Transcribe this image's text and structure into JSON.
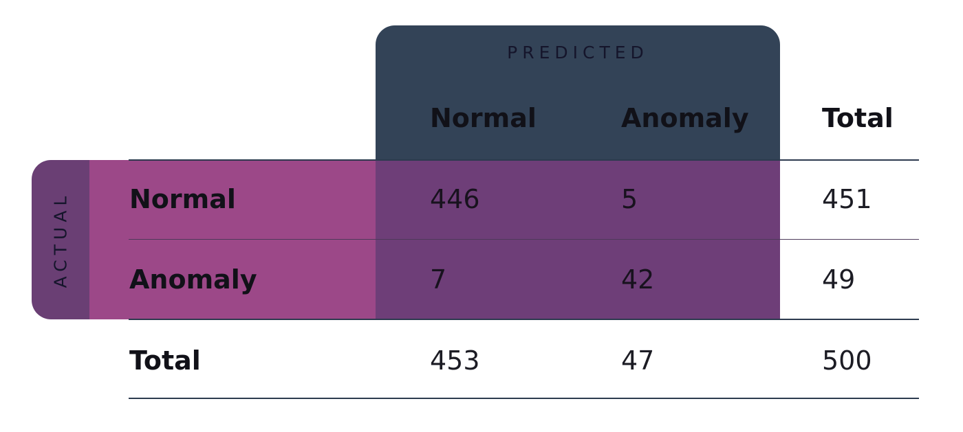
{
  "colors": {
    "predicted_header": "#334357",
    "actual_strip": "#6a3f74",
    "row_label_band": "#9c4888",
    "cell_band": "#6e3e78",
    "rule_line": "#2c3a4e"
  },
  "chart_data": {
    "type": "table",
    "column_group_label": "PREDICTED",
    "row_group_label": "ACTUAL",
    "columns": [
      "Normal",
      "Anomaly",
      "Total"
    ],
    "rows": [
      {
        "label": "Normal",
        "values": [
          446,
          5,
          451
        ]
      },
      {
        "label": "Anomaly",
        "values": [
          7,
          42,
          49
        ]
      },
      {
        "label": "Total",
        "values": [
          453,
          47,
          500
        ]
      }
    ]
  }
}
